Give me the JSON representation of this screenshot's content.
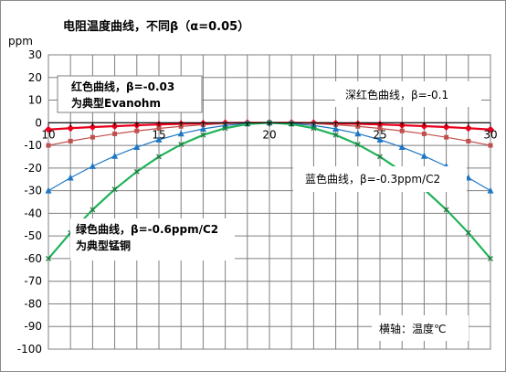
{
  "chart_data": {
    "type": "line",
    "title": "电阻温度曲线，不同β（α=0.05）",
    "ylabel": "ppm",
    "xlabel": "",
    "x": [
      10,
      11,
      12,
      13,
      14,
      15,
      16,
      17,
      18,
      19,
      20,
      21,
      22,
      23,
      24,
      25,
      26,
      27,
      28,
      29,
      30
    ],
    "xticks": [
      10,
      15,
      20,
      25,
      30
    ],
    "yticks": [
      30,
      20,
      10,
      0,
      -10,
      -20,
      -30,
      -40,
      -50,
      -60,
      -70,
      -80,
      -90,
      -100
    ],
    "xlim": [
      10,
      30
    ],
    "ylim": [
      -100,
      30
    ],
    "grid": true,
    "series": [
      {
        "color": "#e8001c",
        "marker": "diamond",
        "values": [
          -3,
          -2.4,
          -1.9,
          -1.5,
          -1.1,
          -0.75,
          -0.5,
          -0.3,
          -0.1,
          -0.03,
          0,
          -0.03,
          -0.1,
          -0.3,
          -0.5,
          -0.75,
          -1.1,
          -1.5,
          -1.9,
          -2.4,
          -3
        ]
      },
      {
        "color": "#c0504d",
        "marker": "square",
        "values": [
          -10,
          -8.1,
          -6.4,
          -4.9,
          -3.6,
          -2.5,
          -1.6,
          -0.9,
          -0.4,
          -0.1,
          0,
          -0.1,
          -0.4,
          -0.9,
          -1.6,
          -2.5,
          -3.6,
          -4.9,
          -6.4,
          -8.1,
          -10
        ]
      },
      {
        "color": "#1f77c4",
        "marker": "triangle",
        "values": [
          -30,
          -24.3,
          -19.2,
          -14.7,
          -10.8,
          -7.5,
          -4.8,
          -2.7,
          -1.2,
          -0.3,
          0,
          -0.3,
          -1.2,
          -2.7,
          -4.8,
          -7.5,
          -10.8,
          -14.7,
          -19.2,
          -24.3,
          -30
        ]
      },
      {
        "color": "#21b35a",
        "marker": "cross",
        "values": [
          -60,
          -48.6,
          -38.4,
          -29.4,
          -21.6,
          -15,
          -9.6,
          -5.4,
          -2.4,
          -0.6,
          0,
          -0.6,
          -2.4,
          -5.4,
          -9.6,
          -15,
          -21.6,
          -29.4,
          -38.4,
          -48.6,
          -60
        ]
      }
    ],
    "annotations": {
      "red_line1": "红色曲线，β=-0.03",
      "red_line2": "为典型Evanohm",
      "darkred": "深红色曲线，β=-0.1",
      "blue": "蓝色曲线，β=-0.3ppm/C2",
      "green_line1": "绿色曲线，β=-0.6ppm/C2",
      "green_line2": "为典型锰铜",
      "xaxis_note": "横轴：温度℃"
    }
  }
}
